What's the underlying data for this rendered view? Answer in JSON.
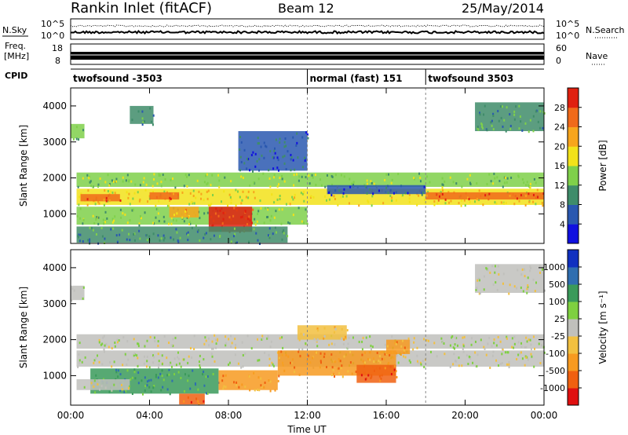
{
  "header": {
    "station": "Rankin Inlet (fitACF)",
    "beam": "Beam 12",
    "date": "25/May/2014"
  },
  "noise_panel": {
    "left_label": "N.Sky",
    "right_label": "N.Search",
    "left_ticks": [
      "10^5",
      "10^0"
    ],
    "right_ticks": [
      "10^5",
      "10^0"
    ]
  },
  "freq_panel": {
    "left_label_1": "Freq.",
    "left_label_2": "[MHz]",
    "right_label": "Nave",
    "left_ticks": [
      "18",
      "8"
    ],
    "right_ticks": [
      "60",
      "0"
    ]
  },
  "cpid_panel": {
    "label": "CPID",
    "segments": [
      {
        "label": "twofsound -3503",
        "start": 0,
        "end": 12
      },
      {
        "label": "normal (fast) 151",
        "start": 12,
        "end": 18
      },
      {
        "label": "twofsound 3503",
        "start": 18,
        "end": 24
      }
    ]
  },
  "chart_data": [
    {
      "type": "heatmap",
      "title": "Power",
      "ylabel": "Slant Range [km]",
      "xlabel": "Time UT",
      "x_range_hours": [
        0,
        24
      ],
      "ylim": [
        180,
        4500
      ],
      "y_ticks": [
        1000,
        2000,
        3000,
        4000
      ],
      "x_ticks": [
        "00:00",
        "04:00",
        "08:00",
        "12:00",
        "16:00",
        "20:00",
        "00:00"
      ],
      "colorbar": {
        "label": "Power [dB]",
        "ticks": [
          "4",
          "8",
          "12",
          "16",
          "20",
          "24",
          "28"
        ],
        "colors": [
          "#1010e0",
          "#2a58b0",
          "#3f8c6a",
          "#7fd04a",
          "#f2e21a",
          "#f7a51c",
          "#f06a1a",
          "#e02010"
        ]
      },
      "echo_regions": [
        {
          "t0": 0.3,
          "t1": 24,
          "r0": 1750,
          "r1": 2150,
          "level": 3
        },
        {
          "t0": 0.3,
          "t1": 24,
          "r0": 1250,
          "r1": 1700,
          "level": 4
        },
        {
          "t0": 0.3,
          "t1": 12,
          "r0": 700,
          "r1": 1200,
          "level": 3
        },
        {
          "t0": 0.5,
          "t1": 2.5,
          "r0": 1350,
          "r1": 1550,
          "level": 6
        },
        {
          "t0": 4.0,
          "t1": 5.5,
          "r0": 1400,
          "r1": 1600,
          "level": 6
        },
        {
          "t0": 7.0,
          "t1": 9.2,
          "r0": 500,
          "r1": 1200,
          "level": 7
        },
        {
          "t0": 5.0,
          "t1": 6.5,
          "r0": 900,
          "r1": 1200,
          "level": 5
        },
        {
          "t0": 13.0,
          "t1": 18.0,
          "r0": 1550,
          "r1": 1800,
          "level": 1
        },
        {
          "t0": 18.0,
          "t1": 24,
          "r0": 1400,
          "r1": 1600,
          "level": 6
        },
        {
          "t0": 0.0,
          "t1": 0.7,
          "r0": 3100,
          "r1": 3500,
          "level": 3
        },
        {
          "t0": 3.0,
          "t1": 4.2,
          "r0": 3500,
          "r1": 4000,
          "level": 2
        },
        {
          "t0": 20.5,
          "t1": 24,
          "r0": 3300,
          "r1": 4100,
          "level": 2
        },
        {
          "t0": 8.5,
          "t1": 12,
          "r0": 2200,
          "r1": 3300,
          "level": 1
        },
        {
          "t0": 0.3,
          "t1": 11,
          "r0": 200,
          "r1": 650,
          "level": 2
        }
      ]
    },
    {
      "type": "heatmap",
      "title": "Velocity",
      "ylabel": "Slant Range [km]",
      "xlabel": "Time UT",
      "x_range_hours": [
        0,
        24
      ],
      "ylim": [
        180,
        4500
      ],
      "y_ticks": [
        1000,
        2000,
        3000,
        4000
      ],
      "x_ticks": [
        "00:00",
        "04:00",
        "08:00",
        "12:00",
        "16:00",
        "20:00",
        "00:00"
      ],
      "colorbar": {
        "label": "Velocity [m s⁻¹]",
        "ticks": [
          "1000",
          "500",
          "100",
          "25",
          "-25",
          "-100",
          "-500",
          "-1000"
        ],
        "colors": [
          "#1030c0",
          "#2f6eb0",
          "#3a9a5a",
          "#7ed040",
          "#c0c0bc",
          "#f2c040",
          "#f79a20",
          "#f06010",
          "#e01010"
        ]
      },
      "echo_regions": [
        {
          "t0": 0.3,
          "t1": 24,
          "r0": 1750,
          "r1": 2150,
          "level": 4
        },
        {
          "t0": 0.3,
          "t1": 24,
          "r0": 1250,
          "r1": 1700,
          "level": 4
        },
        {
          "t0": 1.0,
          "t1": 7.5,
          "r0": 500,
          "r1": 1200,
          "level": 2
        },
        {
          "t0": 0.3,
          "t1": 3.0,
          "r0": 600,
          "r1": 900,
          "level": 4
        },
        {
          "t0": 7.5,
          "t1": 10.5,
          "r0": 600,
          "r1": 1150,
          "level": 6
        },
        {
          "t0": 10.5,
          "t1": 16.5,
          "r0": 1000,
          "r1": 1700,
          "level": 6
        },
        {
          "t0": 11.5,
          "t1": 14.0,
          "r0": 2000,
          "r1": 2400,
          "level": 5
        },
        {
          "t0": 16.0,
          "t1": 17.2,
          "r0": 1600,
          "r1": 2000,
          "level": 6
        },
        {
          "t0": 14.5,
          "t1": 16.5,
          "r0": 800,
          "r1": 1300,
          "level": 7
        },
        {
          "t0": 20.5,
          "t1": 24,
          "r0": 3300,
          "r1": 4100,
          "level": 4
        },
        {
          "t0": 0.0,
          "t1": 0.7,
          "r0": 3100,
          "r1": 3500,
          "level": 4
        },
        {
          "t0": 5.5,
          "t1": 6.8,
          "r0": 200,
          "r1": 500,
          "level": 7
        }
      ]
    }
  ]
}
